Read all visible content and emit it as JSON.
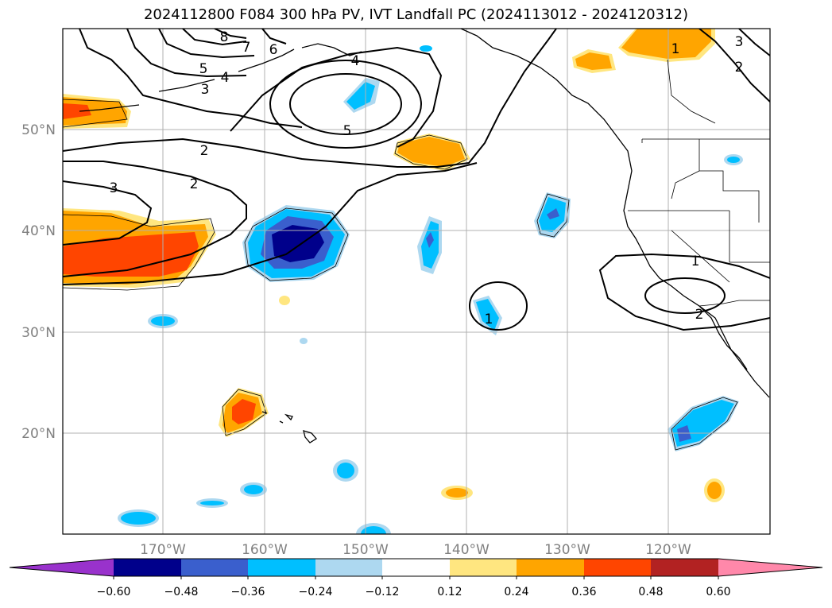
{
  "title": "2024112800 F084 300 hPa PV, IVT Landfall PC (2024113012 - 2024120312)",
  "latitude_labels": [
    "50°N",
    "40°N",
    "30°N",
    "20°N"
  ],
  "longitude_labels": [
    "170°W",
    "160°W",
    "150°W",
    "140°W",
    "130°W",
    "120°W"
  ],
  "colorbar": {
    "tick_labels": [
      "−0.60",
      "−0.48",
      "−0.36",
      "−0.24",
      "−0.12",
      "0.12",
      "0.24",
      "0.36",
      "0.48",
      "0.60"
    ],
    "colors": [
      "#9932cc",
      "#00008b",
      "#3a5fcd",
      "#00bfff",
      "#add8f0",
      "#ffffff",
      "#ffe680",
      "#ffa500",
      "#ff4500",
      "#b22222",
      "#ff88aa"
    ]
  },
  "contour_labels": [
    "8",
    "7",
    "6",
    "5",
    "4",
    "3",
    "4",
    "5",
    "2",
    "2",
    "3",
    "1",
    "3",
    "2",
    "1",
    "2",
    "1"
  ]
}
